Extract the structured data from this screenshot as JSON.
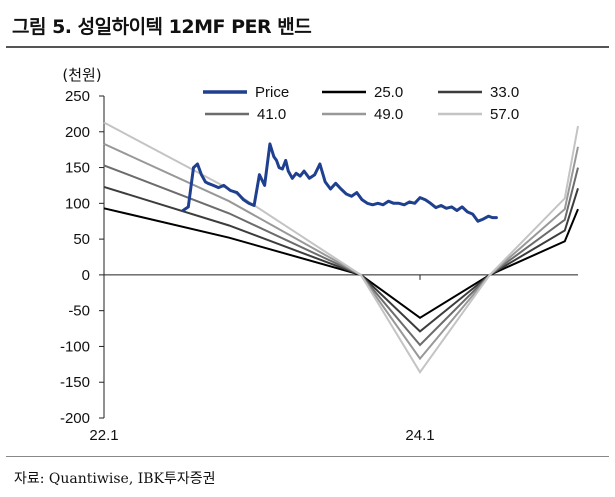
{
  "figure": {
    "title": "그림 5. 성일하이텍 12MF PER 밴드",
    "source": "자료: Quantiwise, IBK투자증권"
  },
  "chart_data": {
    "type": "line",
    "title": "그림 5. 성일하이텍 12MF PER 밴드",
    "ylabel": "(천원)",
    "xlabel": "",
    "ylim": [
      -200,
      250
    ],
    "yticks": [
      -200,
      -150,
      -100,
      -50,
      0,
      50,
      100,
      150,
      200,
      250
    ],
    "xlim": [
      0,
      36
    ],
    "xticks": [
      {
        "x": 0,
        "label": "22.1"
      },
      {
        "x": 24,
        "label": "24.1"
      }
    ],
    "grid": false,
    "legend_position": "top",
    "series": [
      {
        "name": "Price",
        "color": "#1f3f8f",
        "x": [
          6.0,
          6.4,
          6.8,
          7.1,
          7.4,
          7.7,
          7.9,
          8.3,
          8.7,
          9.1,
          9.6,
          10.1,
          10.6,
          11.0,
          11.4,
          11.8,
          12.2,
          12.6,
          12.9,
          13.1,
          13.3,
          13.55,
          13.8,
          14.0,
          14.3,
          14.6,
          14.9,
          15.2,
          15.6,
          16.0,
          16.4,
          16.8,
          17.2,
          17.6,
          18.0,
          18.4,
          18.8,
          19.2,
          19.6,
          20.0,
          20.4,
          20.8,
          21.2,
          21.6,
          22.0,
          22.4,
          22.8,
          23.2,
          23.6,
          24.0,
          24.4,
          24.8,
          25.2,
          25.6,
          26.0,
          26.4,
          26.8,
          27.2,
          27.6,
          28.0,
          28.4,
          28.8,
          29.2,
          29.5,
          29.8
        ],
        "values": [
          90,
          95,
          150,
          155,
          140,
          130,
          128,
          125,
          122,
          125,
          118,
          115,
          105,
          100,
          97,
          140,
          125,
          183,
          165,
          160,
          150,
          148,
          160,
          145,
          135,
          142,
          138,
          145,
          135,
          140,
          155,
          130,
          120,
          128,
          120,
          113,
          110,
          115,
          105,
          100,
          98,
          100,
          98,
          103,
          100,
          100,
          98,
          102,
          100,
          108,
          105,
          100,
          94,
          97,
          93,
          95,
          90,
          95,
          88,
          85,
          75,
          78,
          82,
          80,
          80
        ]
      },
      {
        "name": "25.0",
        "color": "#000000",
        "x": [
          0,
          9.5,
          19.5,
          24,
          29.3,
          35,
          36
        ],
        "values": [
          93,
          52,
          0,
          -60,
          0,
          47,
          92
        ]
      },
      {
        "name": "33.0",
        "color": "#3c3c3c",
        "x": [
          0,
          9.5,
          19.5,
          24,
          29.3,
          35,
          36
        ],
        "values": [
          123,
          69,
          0,
          -79,
          0,
          62,
          121
        ]
      },
      {
        "name": "41.0",
        "color": "#6c6c6c",
        "x": [
          0,
          9.5,
          19.5,
          24,
          29.3,
          35,
          36
        ],
        "values": [
          153,
          86,
          0,
          -98,
          0,
          77,
          150
        ]
      },
      {
        "name": "49.0",
        "color": "#989898",
        "x": [
          0,
          9.5,
          19.5,
          24,
          29.3,
          35,
          36
        ],
        "values": [
          183,
          103,
          0,
          -117,
          0,
          92,
          179
        ]
      },
      {
        "name": "57.0",
        "color": "#c4c4c4",
        "x": [
          0,
          9.5,
          19.5,
          24,
          29.3,
          35,
          36
        ],
        "values": [
          213,
          120,
          0,
          -136,
          0,
          107,
          208
        ]
      }
    ]
  }
}
